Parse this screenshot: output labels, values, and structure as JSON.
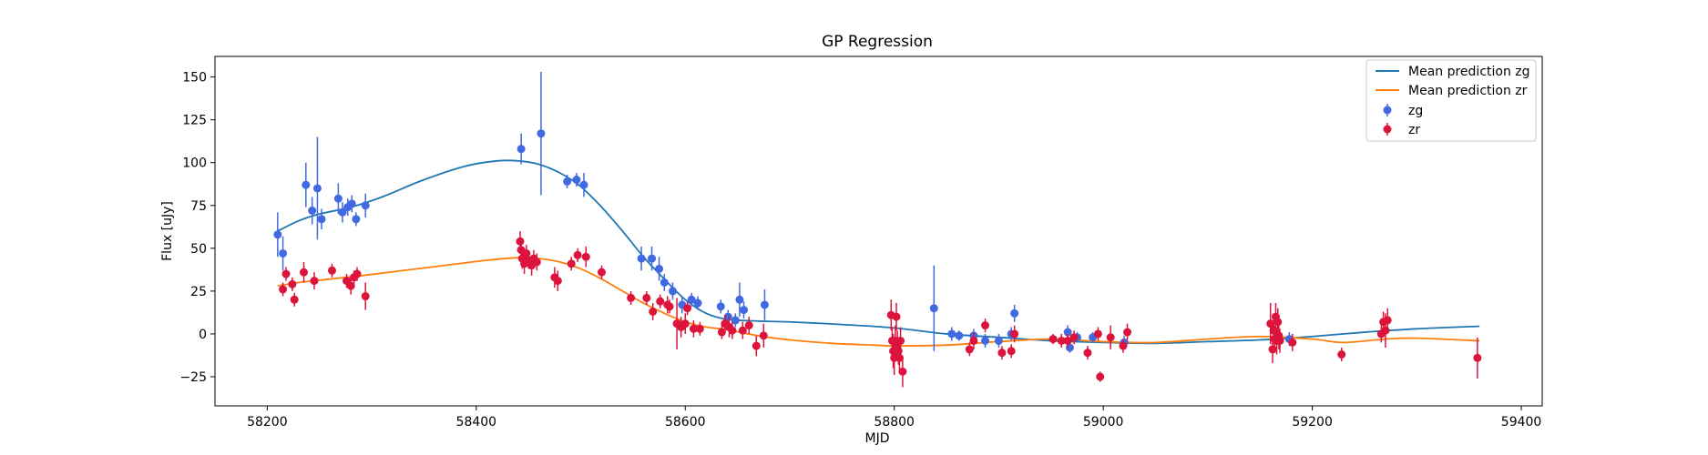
{
  "chart_data": {
    "type": "scatter",
    "title": "GP Regression",
    "xlabel": "MJD",
    "ylabel": "Flux [uJy]",
    "xlim": [
      58150,
      59420
    ],
    "ylim": [
      -42,
      162
    ],
    "xticks": [
      58200,
      58400,
      58600,
      58800,
      59000,
      59200,
      59400
    ],
    "yticks": [
      -25,
      0,
      25,
      50,
      75,
      100,
      125,
      150
    ],
    "legend_position": "top-right",
    "grid": false,
    "lines": [
      {
        "name": "Mean prediction zg",
        "color": "#1f77b4",
        "x": [
          58210,
          58230,
          58250,
          58280,
          58310,
          58350,
          58390,
          58420,
          58440,
          58460,
          58480,
          58500,
          58520,
          58540,
          58560,
          58580,
          58600,
          58620,
          58640,
          58670,
          58700,
          58750,
          58800,
          58850,
          58900,
          58950,
          59000,
          59050,
          59100,
          59150,
          59200,
          59250,
          59300,
          59360
        ],
        "y": [
          60,
          66,
          70,
          74,
          80,
          90,
          98,
          101,
          101,
          99,
          94,
          86,
          74,
          60,
          45,
          32,
          20,
          12,
          8.5,
          7.5,
          7,
          5.5,
          3.5,
          0,
          -2,
          -4,
          -5,
          -5.5,
          -4.5,
          -3.5,
          -1.5,
          1,
          3,
          4.5
        ]
      },
      {
        "name": "Mean prediction zr",
        "color": "#ff7f0e",
        "x": [
          58210,
          58230,
          58260,
          58290,
          58330,
          58370,
          58410,
          58440,
          58460,
          58480,
          58500,
          58520,
          58540,
          58560,
          58580,
          58600,
          58620,
          58640,
          58660,
          58680,
          58700,
          58740,
          58780,
          58800,
          58850,
          58900,
          58950,
          59000,
          59050,
          59100,
          59150,
          59200,
          59230,
          59270,
          59300,
          59360
        ],
        "y": [
          28,
          30,
          32,
          34,
          37,
          40,
          43,
          44.5,
          44,
          42,
          38,
          32,
          25,
          18,
          12,
          7,
          4,
          2.5,
          0,
          -2,
          -3.5,
          -5.5,
          -6.5,
          -7,
          -6.5,
          -4.5,
          -3,
          -4.5,
          -5,
          -3,
          -1.5,
          -3,
          -5,
          -3,
          -2.5,
          -4
        ]
      }
    ],
    "series": [
      {
        "name": "zg",
        "color": "#4169e1",
        "points": [
          [
            58210,
            58,
            13
          ],
          [
            58215,
            47,
            10
          ],
          [
            58237,
            87,
            13
          ],
          [
            58243,
            72,
            8
          ],
          [
            58248,
            85,
            30
          ],
          [
            58252,
            67,
            6
          ],
          [
            58268,
            79,
            9
          ],
          [
            58272,
            71,
            6
          ],
          [
            58277,
            74,
            5
          ],
          [
            58281,
            76,
            5
          ],
          [
            58285,
            67,
            4
          ],
          [
            58294,
            75,
            7
          ],
          [
            58443,
            108,
            9
          ],
          [
            58462,
            117,
            36
          ],
          [
            58487,
            89,
            4
          ],
          [
            58496,
            90,
            4
          ],
          [
            58503,
            87,
            7
          ],
          [
            58558,
            44,
            7
          ],
          [
            58568,
            44,
            7
          ],
          [
            58575,
            38,
            7
          ],
          [
            58580,
            30,
            5
          ],
          [
            58588,
            25,
            5
          ],
          [
            58597,
            17,
            5
          ],
          [
            58606,
            20,
            4
          ],
          [
            58612,
            18,
            4
          ],
          [
            58634,
            16,
            4
          ],
          [
            58641,
            10,
            4
          ],
          [
            58648,
            8,
            4
          ],
          [
            58652,
            20,
            10
          ],
          [
            58656,
            14,
            5
          ],
          [
            58676,
            17,
            9
          ],
          [
            58838,
            15,
            25
          ],
          [
            58855,
            0,
            4
          ],
          [
            58862,
            -1,
            3
          ],
          [
            58876,
            -1,
            4
          ],
          [
            58887,
            -4,
            4
          ],
          [
            58900,
            -4,
            4
          ],
          [
            58912,
            0,
            4
          ],
          [
            58915,
            12,
            5
          ],
          [
            58966,
            1,
            4
          ],
          [
            58968,
            -8,
            3
          ],
          [
            58975,
            -2,
            3
          ],
          [
            58990,
            -2,
            3
          ],
          [
            59020,
            -5,
            4
          ],
          [
            59178,
            -3,
            4
          ]
        ]
      },
      {
        "name": "zr",
        "color": "#dc143c",
        "points": [
          [
            58215,
            26,
            4
          ],
          [
            58218,
            35,
            4
          ],
          [
            58224,
            29,
            4
          ],
          [
            58226,
            20,
            4
          ],
          [
            58235,
            36,
            6
          ],
          [
            58245,
            31,
            5
          ],
          [
            58262,
            37,
            4
          ],
          [
            58276,
            31,
            4
          ],
          [
            58280,
            28,
            5
          ],
          [
            58283,
            33,
            4
          ],
          [
            58286,
            35,
            4
          ],
          [
            58294,
            22,
            8
          ],
          [
            58442,
            54,
            6
          ],
          [
            58443,
            49,
            5
          ],
          [
            58444,
            44,
            6
          ],
          [
            58446,
            41,
            6
          ],
          [
            58448,
            47,
            5
          ],
          [
            58450,
            43,
            5
          ],
          [
            58453,
            40,
            6
          ],
          [
            58455,
            44,
            5
          ],
          [
            58458,
            42,
            5
          ],
          [
            58475,
            33,
            6
          ],
          [
            58478,
            31,
            6
          ],
          [
            58491,
            41,
            4
          ],
          [
            58497,
            46,
            4
          ],
          [
            58505,
            45,
            6
          ],
          [
            58520,
            36,
            4
          ],
          [
            58548,
            21,
            4
          ],
          [
            58563,
            21,
            4
          ],
          [
            58569,
            13,
            5
          ],
          [
            58576,
            19,
            4
          ],
          [
            58583,
            17,
            5
          ],
          [
            58585,
            16,
            4
          ],
          [
            58592,
            6,
            15
          ],
          [
            58596,
            4,
            6
          ],
          [
            58600,
            6,
            6
          ],
          [
            58602,
            15,
            4
          ],
          [
            58608,
            3,
            5
          ],
          [
            58614,
            3,
            4
          ],
          [
            58635,
            1,
            4
          ],
          [
            58638,
            6,
            5
          ],
          [
            58642,
            4,
            6
          ],
          [
            58645,
            2,
            5
          ],
          [
            58655,
            2,
            5
          ],
          [
            58661,
            5,
            5
          ],
          [
            58668,
            -7,
            6
          ],
          [
            58675,
            -1,
            7
          ],
          [
            58797,
            11,
            9
          ],
          [
            58798,
            -4,
            8
          ],
          [
            58799,
            -10,
            10
          ],
          [
            58800,
            -14,
            10
          ],
          [
            58801,
            -4,
            9
          ],
          [
            58802,
            10,
            8
          ],
          [
            58803,
            -6,
            8
          ],
          [
            58804,
            -10,
            8
          ],
          [
            58805,
            -14,
            9
          ],
          [
            58806,
            -4,
            8
          ],
          [
            58808,
            -22,
            9
          ],
          [
            58872,
            -9,
            4
          ],
          [
            58876,
            -4,
            5
          ],
          [
            58887,
            5,
            4
          ],
          [
            58903,
            -11,
            4
          ],
          [
            58912,
            -10,
            4
          ],
          [
            58915,
            0,
            5
          ],
          [
            58952,
            -3,
            3
          ],
          [
            58960,
            -4,
            4
          ],
          [
            58966,
            -4,
            4
          ],
          [
            58972,
            -2,
            4
          ],
          [
            58985,
            -11,
            4
          ],
          [
            58995,
            0,
            4
          ],
          [
            58997,
            -25,
            3
          ],
          [
            59007,
            -2,
            7
          ],
          [
            59019,
            -7,
            4
          ],
          [
            59023,
            1,
            5
          ],
          [
            59160,
            6,
            12
          ],
          [
            59162,
            -9,
            8
          ],
          [
            59163,
            2,
            8
          ],
          [
            59164,
            -3,
            8
          ],
          [
            59165,
            10,
            8
          ],
          [
            59166,
            -4,
            8
          ],
          [
            59167,
            7,
            8
          ],
          [
            59168,
            -1,
            8
          ],
          [
            59169,
            -4,
            7
          ],
          [
            59181,
            -5,
            5
          ],
          [
            59228,
            -12,
            4
          ],
          [
            59266,
            0,
            5
          ],
          [
            59268,
            7,
            6
          ],
          [
            59270,
            2,
            10
          ],
          [
            59272,
            8,
            7
          ],
          [
            59358,
            -14,
            12
          ]
        ]
      }
    ]
  }
}
